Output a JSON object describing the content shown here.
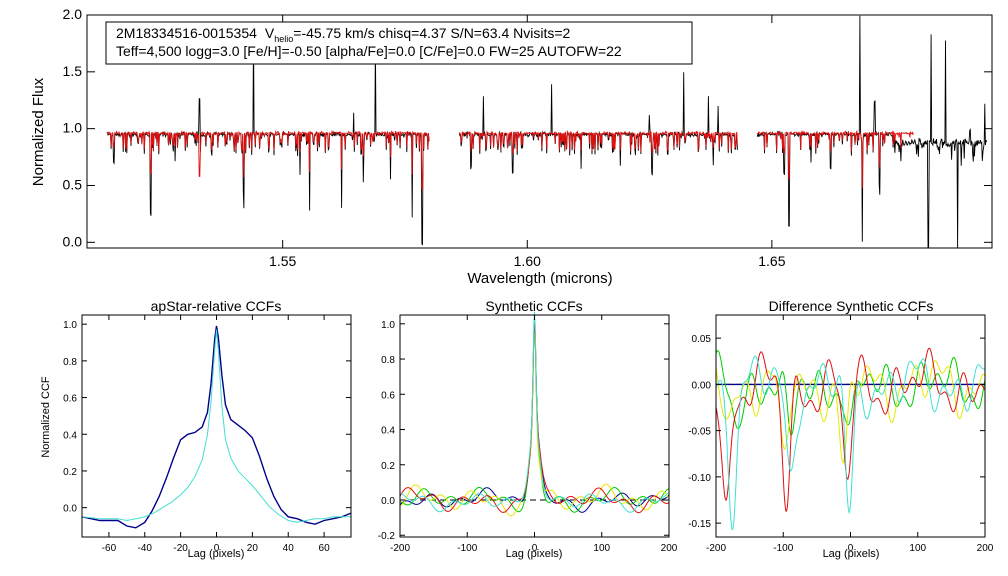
{
  "header": {
    "line1_star": "2M18334516-0015354",
    "line1_v": "V",
    "line1_v_sub": "helio",
    "line1_rest": "=-45.75 km/s  chisq=4.37  S/N=63.4  Nvisits=2",
    "line2": "Teff=4,500 logg=3.0 [Fe/H]=-0.50 [alpha/Fe]=0.0 [C/Fe]=0.0 FW=25 AUTOFW=22"
  },
  "colors": {
    "observed": "#000000",
    "model": "#e01010",
    "ccf_apstar": "#00008b",
    "ccf_alt": "#40e0d0",
    "green": "#00cc00",
    "yellow": "#e8e800",
    "red": "#e01010"
  },
  "chart_data": [
    {
      "id": "spectrum",
      "type": "line",
      "title": "",
      "xlabel": "Wavelength (microns)",
      "ylabel": "Normalized Flux",
      "xlim": [
        1.51,
        1.695
      ],
      "ylim": [
        -0.05,
        2.0
      ],
      "xticks": [
        1.55,
        1.6,
        1.65
      ],
      "xtick_labels": [
        "1.55",
        "1.60",
        "1.65"
      ],
      "yticks": [
        0.0,
        0.5,
        1.0,
        1.5,
        2.0
      ],
      "ytick_labels": [
        "0.0",
        "0.5",
        "1.0",
        "1.5",
        "2.0"
      ],
      "segments": [
        [
          1.514,
          1.58
        ],
        [
          1.586,
          1.643
        ],
        [
          1.647,
          1.694
        ]
      ],
      "series": [
        {
          "name": "observed",
          "continuum": 0.95,
          "color_key": "observed"
        },
        {
          "name": "model",
          "continuum": 0.96,
          "color_key": "model"
        }
      ],
      "absorption_lines": [
        [
          1.5155,
          0.7
        ],
        [
          1.523,
          0.25
        ],
        [
          1.528,
          0.72
        ],
        [
          1.533,
          0.2
        ],
        [
          1.542,
          0.45
        ],
        [
          1.5535,
          0.6
        ],
        [
          1.5555,
          0.28
        ],
        [
          1.562,
          0.3
        ],
        [
          1.5665,
          0.55
        ],
        [
          1.572,
          0.55
        ],
        [
          1.5765,
          0.22
        ],
        [
          1.5785,
          -0.02
        ],
        [
          1.5885,
          0.65
        ],
        [
          1.597,
          0.6
        ],
        [
          1.611,
          0.65
        ],
        [
          1.619,
          0.65
        ],
        [
          1.6255,
          0.6
        ],
        [
          1.638,
          0.7
        ],
        [
          1.6525,
          0.6
        ],
        [
          1.6535,
          0.15
        ],
        [
          1.658,
          0.7
        ],
        [
          1.662,
          0.65
        ],
        [
          1.6685,
          0.0
        ],
        [
          1.672,
          0.5
        ],
        [
          1.682,
          0.0
        ],
        [
          1.688,
          0.02
        ],
        [
          1.6905,
          0.0
        ]
      ],
      "emission_spikes": [
        [
          1.533,
          2.0
        ],
        [
          1.544,
          1.9
        ],
        [
          1.5645,
          1.15
        ],
        [
          1.569,
          1.75
        ],
        [
          1.591,
          1.3
        ],
        [
          1.605,
          1.4
        ],
        [
          1.625,
          1.1
        ],
        [
          1.632,
          1.5
        ],
        [
          1.637,
          1.3
        ],
        [
          1.639,
          1.2
        ],
        [
          1.668,
          2.0
        ],
        [
          1.671,
          1.25
        ],
        [
          1.6825,
          2.0
        ],
        [
          1.6855,
          1.85
        ],
        [
          1.6905,
          2.0
        ],
        [
          1.6935,
          1.3
        ]
      ]
    },
    {
      "id": "apstar-ccf",
      "type": "line",
      "title": "apStar-relative CCFs",
      "xlabel": "Lag (pixels)",
      "ylabel": "Normalized CCF",
      "xlim": [
        -75,
        75
      ],
      "ylim": [
        -0.16,
        1.05
      ],
      "xticks": [
        -60,
        -40,
        -20,
        0,
        20,
        40,
        60
      ],
      "xtick_labels": [
        "-60",
        "-40",
        "-20",
        "0",
        "20",
        "40",
        "60"
      ],
      "yticks": [
        0.0,
        0.2,
        0.4,
        0.6,
        0.8,
        1.0
      ],
      "ytick_labels": [
        "0.0",
        "0.2",
        "0.4",
        "0.6",
        "0.8",
        "1.0"
      ],
      "series": [
        {
          "name": "apStar",
          "color_key": "ccf_apstar",
          "x": [
            -75,
            -65,
            -55,
            -50,
            -45,
            -40,
            -36,
            -32,
            -28,
            -24,
            -20,
            -16,
            -12,
            -8,
            -5,
            -3,
            -1,
            0,
            1,
            3,
            5,
            8,
            12,
            16,
            20,
            24,
            28,
            32,
            36,
            40,
            45,
            50,
            55,
            60,
            65,
            70,
            75
          ],
          "y": [
            -0.05,
            -0.07,
            -0.07,
            -0.1,
            -0.11,
            -0.08,
            -0.02,
            0.06,
            0.16,
            0.27,
            0.37,
            0.4,
            0.41,
            0.44,
            0.52,
            0.68,
            0.92,
            0.99,
            0.93,
            0.72,
            0.56,
            0.48,
            0.45,
            0.42,
            0.38,
            0.28,
            0.16,
            0.06,
            -0.01,
            -0.05,
            -0.06,
            -0.08,
            -0.09,
            -0.07,
            -0.06,
            -0.05,
            -0.03
          ]
        },
        {
          "name": "alternate",
          "color_key": "ccf_alt",
          "x": [
            -75,
            -65,
            -55,
            -50,
            -45,
            -40,
            -35,
            -30,
            -25,
            -20,
            -16,
            -12,
            -8,
            -5,
            -3,
            -1,
            0,
            1,
            3,
            5,
            8,
            12,
            16,
            20,
            25,
            30,
            35,
            40,
            45,
            50,
            55,
            60,
            65,
            70,
            75
          ],
          "y": [
            -0.05,
            -0.06,
            -0.06,
            -0.07,
            -0.06,
            -0.05,
            -0.03,
            0.0,
            0.03,
            0.07,
            0.11,
            0.17,
            0.26,
            0.4,
            0.58,
            0.86,
            0.97,
            0.86,
            0.55,
            0.37,
            0.27,
            0.2,
            0.16,
            0.12,
            0.06,
            0.0,
            -0.04,
            -0.07,
            -0.08,
            -0.07,
            -0.06,
            -0.06,
            -0.05,
            -0.05,
            -0.05
          ]
        }
      ]
    },
    {
      "id": "synthetic-ccf",
      "type": "line",
      "title": "Synthetic CCFs",
      "xlabel": "Lag (pixels)",
      "ylabel": "",
      "xlim": [
        -200,
        200
      ],
      "ylim": [
        -0.21,
        1.05
      ],
      "xticks": [
        -200,
        -100,
        0,
        100,
        200
      ],
      "xtick_labels": [
        "-200",
        "-100",
        "0",
        "100",
        "200"
      ],
      "yticks": [
        -0.2,
        0.0,
        0.2,
        0.4,
        0.6,
        0.8,
        1.0
      ],
      "ytick_labels": [
        "-0.2",
        "0.0",
        "0.2",
        "0.4",
        "0.6",
        "0.8",
        "1.0"
      ],
      "reference_line": 0.0,
      "series": [
        {
          "name": "blue",
          "color_key": "ccf_apstar",
          "peak": 1.0,
          "wing": 0.47,
          "phase": 0.0,
          "amp": 0.05
        },
        {
          "name": "green",
          "color_key": "green",
          "peak": 1.0,
          "wing": 0.4,
          "phase": 1.1,
          "amp": 0.06
        },
        {
          "name": "yellow",
          "color_key": "yellow",
          "peak": 1.0,
          "wing": 0.38,
          "phase": 2.3,
          "amp": 0.07
        },
        {
          "name": "red",
          "color_key": "red",
          "peak": 1.0,
          "wing": 0.42,
          "phase": 3.4,
          "amp": 0.06
        },
        {
          "name": "cyan",
          "color_key": "ccf_alt",
          "peak": 1.0,
          "wing": 0.36,
          "phase": 4.6,
          "amp": 0.05
        }
      ]
    },
    {
      "id": "difference-ccf",
      "type": "line",
      "title": "Difference Synthetic CCFs",
      "xlabel": "Lag (pixels)",
      "ylabel": "",
      "xlim": [
        -200,
        200
      ],
      "ylim": [
        -0.165,
        0.075
      ],
      "xticks": [
        -200,
        -100,
        0,
        100,
        200
      ],
      "xtick_labels": [
        "-200",
        "-100",
        "0",
        "100",
        "200"
      ],
      "yticks": [
        -0.15,
        -0.1,
        -0.05,
        0.0,
        0.05
      ],
      "ytick_labels": [
        "-0.15",
        "-0.10",
        "-0.05",
        "0.00",
        "0.05"
      ],
      "reference_line": 0.0,
      "series": [
        {
          "name": "blue",
          "color_key": "ccf_apstar",
          "flat": true
        },
        {
          "name": "green",
          "color_key": "green",
          "phase": 0.7,
          "amp": 0.025,
          "dips": [
            [
              -170,
              -0.04
            ],
            [
              -90,
              -0.07
            ],
            [
              0,
              -0.06
            ]
          ]
        },
        {
          "name": "yellow",
          "color_key": "yellow",
          "phase": 2.1,
          "amp": 0.03,
          "dips": [
            [
              -180,
              -0.03
            ],
            [
              -100,
              -0.09
            ],
            [
              -10,
              -0.1
            ]
          ]
        },
        {
          "name": "red",
          "color_key": "red",
          "phase": 3.7,
          "amp": 0.03,
          "dips": [
            [
              -185,
              -0.14
            ],
            [
              -95,
              -0.13
            ],
            [
              -5,
              -0.11
            ]
          ]
        },
        {
          "name": "cyan",
          "color_key": "ccf_alt",
          "phase": 5.2,
          "amp": 0.03,
          "dips": [
            [
              -175,
              -0.12
            ],
            [
              -90,
              -0.1
            ],
            [
              -2,
              -0.15
            ]
          ]
        }
      ]
    }
  ]
}
